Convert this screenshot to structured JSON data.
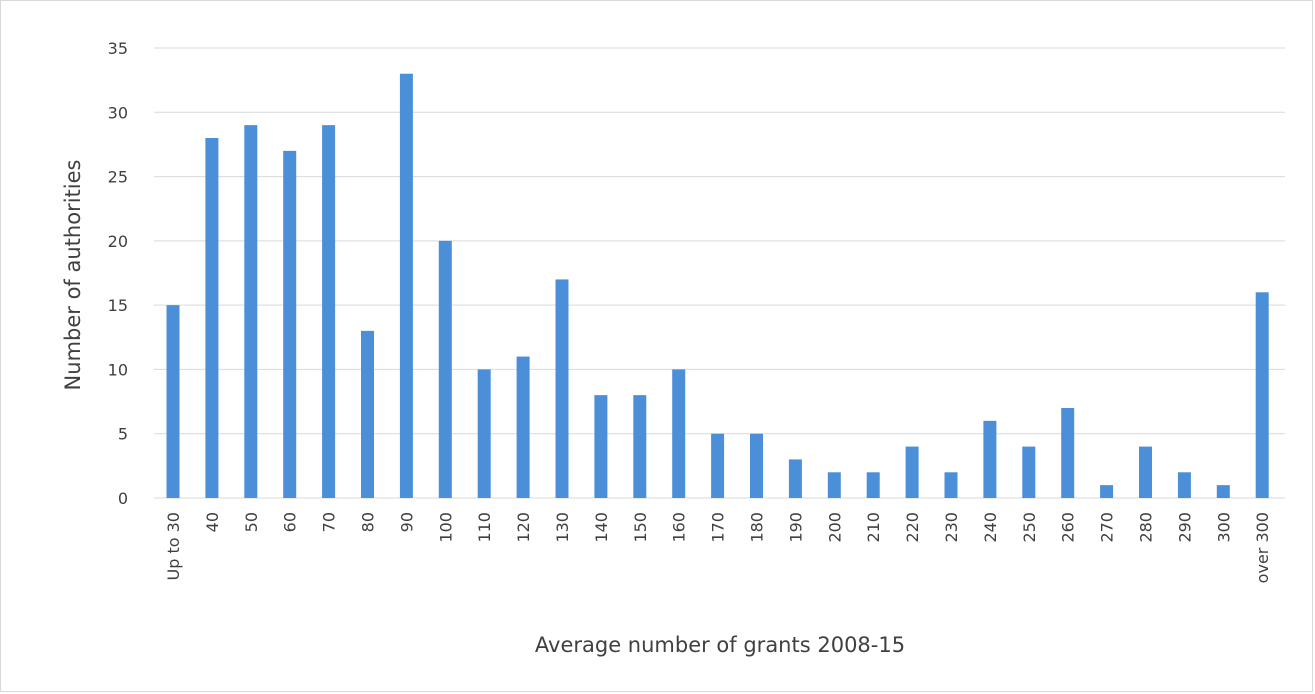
{
  "chart_data": {
    "type": "bar",
    "categories": [
      "Up to 30",
      "40",
      "50",
      "60",
      "70",
      "80",
      "90",
      "100",
      "110",
      "120",
      "130",
      "140",
      "150",
      "160",
      "170",
      "180",
      "190",
      "200",
      "210",
      "220",
      "230",
      "240",
      "250",
      "260",
      "270",
      "280",
      "290",
      "300",
      "over 300"
    ],
    "values": [
      15,
      28,
      29,
      27,
      29,
      13,
      33,
      20,
      10,
      11,
      17,
      8,
      8,
      10,
      5,
      5,
      3,
      2,
      2,
      4,
      2,
      6,
      4,
      7,
      1,
      4,
      2,
      1,
      16
    ],
    "xlabel": "Average number of grants 2008-15",
    "ylabel": "Number of authorities",
    "ylim": [
      0,
      35
    ],
    "yticks": [
      0,
      5,
      10,
      15,
      20,
      25,
      30,
      35
    ],
    "grid": true,
    "colors": {
      "bar": "#4a8fd8",
      "grid": "#d9d9d9",
      "text": "#404040"
    }
  }
}
